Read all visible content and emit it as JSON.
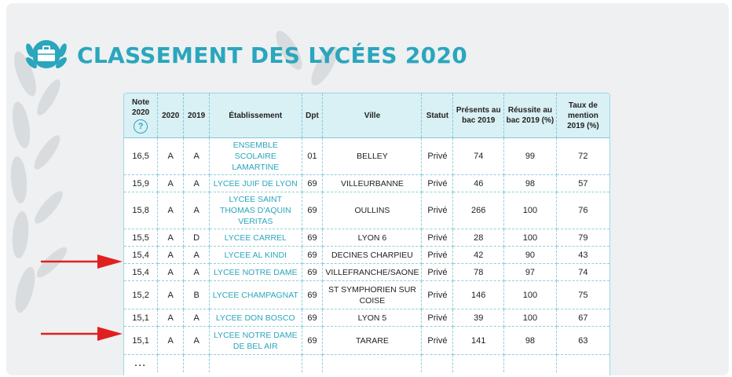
{
  "header": {
    "icon": "briefcase-badge-icon",
    "title": "CLASSEMENT DES LYCÉES 2020"
  },
  "table": {
    "columns": {
      "note_line1": "Note",
      "note_line2": "2020",
      "note_help": "?",
      "c2020": "2020",
      "c2019": "2019",
      "etab": "Établissement",
      "dpt": "Dpt",
      "ville": "Ville",
      "statut": "Statut",
      "presents": "Présents au bac 2019",
      "reussite": "Réussite au bac 2019 (%)",
      "taux": "Taux de mention 2019 (%)"
    },
    "rows": [
      {
        "note": "16,5",
        "c2020": "A",
        "c2019": "A",
        "etab": "ENSEMBLE SCOLAIRE LAMARTINE",
        "dpt": "01",
        "ville": "BELLEY",
        "statut": "Privé",
        "presents": "74",
        "reussite": "99",
        "taux": "72"
      },
      {
        "note": "15,9",
        "c2020": "A",
        "c2019": "A",
        "etab": "LYCEE JUIF DE LYON",
        "dpt": "69",
        "ville": "VILLEURBANNE",
        "statut": "Privé",
        "presents": "46",
        "reussite": "98",
        "taux": "57"
      },
      {
        "note": "15,8",
        "c2020": "A",
        "c2019": "A",
        "etab": "LYCEE SAINT THOMAS D'AQUIN VERITAS",
        "dpt": "69",
        "ville": "OULLINS",
        "statut": "Privé",
        "presents": "266",
        "reussite": "100",
        "taux": "76"
      },
      {
        "note": "15,5",
        "c2020": "A",
        "c2019": "D",
        "etab": "LYCEE CARREL",
        "dpt": "69",
        "ville": "LYON 6",
        "statut": "Privé",
        "presents": "28",
        "reussite": "100",
        "taux": "79"
      },
      {
        "note": "15,4",
        "c2020": "A",
        "c2019": "A",
        "etab": "LYCEE AL KINDI",
        "dpt": "69",
        "ville": "DECINES CHARPIEU",
        "statut": "Privé",
        "presents": "42",
        "reussite": "90",
        "taux": "43"
      },
      {
        "note": "15,4",
        "c2020": "A",
        "c2019": "A",
        "etab": "LYCEE NOTRE DAME",
        "dpt": "69",
        "ville": "VILLEFRANCHE/SAONE",
        "statut": "Privé",
        "presents": "78",
        "reussite": "97",
        "taux": "74"
      },
      {
        "note": "15,2",
        "c2020": "A",
        "c2019": "B",
        "etab": "LYCEE CHAMPAGNAT",
        "dpt": "69",
        "ville": "ST SYMPHORIEN SUR COISE",
        "statut": "Privé",
        "presents": "146",
        "reussite": "100",
        "taux": "75"
      },
      {
        "note": "15,1",
        "c2020": "A",
        "c2019": "A",
        "etab": "LYCEE DON BOSCO",
        "dpt": "69",
        "ville": "LYON 5",
        "statut": "Privé",
        "presents": "39",
        "reussite": "100",
        "taux": "67"
      },
      {
        "note": "15,1",
        "c2020": "A",
        "c2019": "A",
        "etab": "LYCEE NOTRE DAME DE BEL AIR",
        "dpt": "69",
        "ville": "TARARE",
        "statut": "Privé",
        "presents": "141",
        "reussite": "98",
        "taux": "63"
      }
    ],
    "more": "..."
  },
  "annotations": {
    "arrow_color": "#e02020",
    "arrow_icon": "red-arrow-icon"
  },
  "colors": {
    "accent": "#2aa6bd",
    "header_bg": "#d9f0f5",
    "panel_bg": "#eef0f1"
  }
}
